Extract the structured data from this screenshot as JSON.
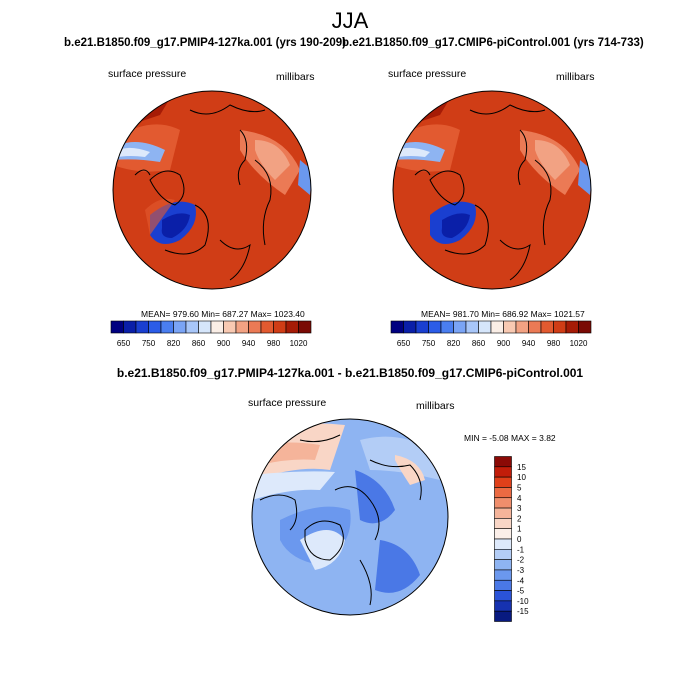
{
  "page": {
    "title": "JJA",
    "diff_title": "b.e21.B1850.f09_g17.PMIP4-127ka.001 - b.e21.B1850.f09_g17.CMIP6-piControl.001"
  },
  "chart_data": [
    {
      "type": "heatmap",
      "projection": "polar-stereographic",
      "title": "b.e21.B1850.f09_g17.PMIP4-127ka.001 (yrs 190-209)",
      "left_label": "surface pressure",
      "right_label": "millibars",
      "stats": {
        "mean": "979.60",
        "min": "687.27",
        "max": "1023.40",
        "text": "MEAN= 979.60  Min= 687.27  Max= 1023.40"
      },
      "colorbar": {
        "orientation": "horizontal",
        "levels": [
          650,
          700,
          750,
          780,
          820,
          840,
          860,
          880,
          900,
          920,
          940,
          960,
          980,
          1000,
          1020
        ],
        "tick_labels": [
          "650",
          "750",
          "820",
          "860",
          "900",
          "940",
          "980",
          "1020"
        ],
        "colors": [
          "#000080",
          "#0a1fa8",
          "#1a3fd0",
          "#2b5ce8",
          "#4a7ef0",
          "#7aa4f5",
          "#a8c6f8",
          "#d6e6fb",
          "#faeee6",
          "#f8c9b2",
          "#f2a283",
          "#eb7a55",
          "#e25a30",
          "#d03d16",
          "#a61b06",
          "#7a0a04"
        ]
      }
    },
    {
      "type": "heatmap",
      "projection": "polar-stereographic",
      "title": "b.e21.B1850.f09_g17.CMIP6-piControl.001 (yrs 714-733)",
      "left_label": "surface pressure",
      "right_label": "millibars",
      "stats": {
        "mean": "981.70",
        "min": "686.92",
        "max": "1021.57",
        "text": "MEAN= 981.70  Min= 686.92  Max= 1021.57"
      },
      "colorbar": {
        "orientation": "horizontal",
        "levels": [
          650,
          700,
          750,
          780,
          820,
          840,
          860,
          880,
          900,
          920,
          940,
          960,
          980,
          1000,
          1020
        ],
        "tick_labels": [
          "650",
          "750",
          "820",
          "860",
          "900",
          "940",
          "980",
          "1020"
        ],
        "colors": [
          "#000080",
          "#0a1fa8",
          "#1a3fd0",
          "#2b5ce8",
          "#4a7ef0",
          "#7aa4f5",
          "#a8c6f8",
          "#d6e6fb",
          "#faeee6",
          "#f8c9b2",
          "#f2a283",
          "#eb7a55",
          "#e25a30",
          "#d03d16",
          "#a61b06",
          "#7a0a04"
        ]
      }
    },
    {
      "type": "heatmap",
      "projection": "polar-stereographic",
      "title": "b.e21.B1850.f09_g17.PMIP4-127ka.001 - b.e21.B1850.f09_g17.CMIP6-piControl.001",
      "left_label": "surface pressure",
      "right_label": "millibars",
      "stats": {
        "min": "-5.08",
        "max": "3.82",
        "text": "MIN =  -5.08 MAX =   3.82"
      },
      "colorbar": {
        "orientation": "vertical",
        "levels": [
          15,
          10,
          5,
          4,
          3,
          2,
          1,
          0,
          -1,
          -2,
          -3,
          -4,
          -5,
          -10,
          -15
        ],
        "tick_labels": [
          "15",
          "10",
          "5",
          "4",
          "3",
          "2",
          "1",
          "0",
          "-1",
          "-2",
          "-3",
          "-4",
          "-5",
          "-10",
          "-15"
        ],
        "colors": [
          "#8b0a06",
          "#c21d0a",
          "#e0401a",
          "#ec6a42",
          "#f08e6c",
          "#f5b49a",
          "#f9d6c6",
          "#fbefe9",
          "#dde9fb",
          "#b3cdf6",
          "#8eb4f2",
          "#6b98ee",
          "#4a78e6",
          "#2a53d8",
          "#1632b0",
          "#081a80"
        ]
      }
    }
  ]
}
